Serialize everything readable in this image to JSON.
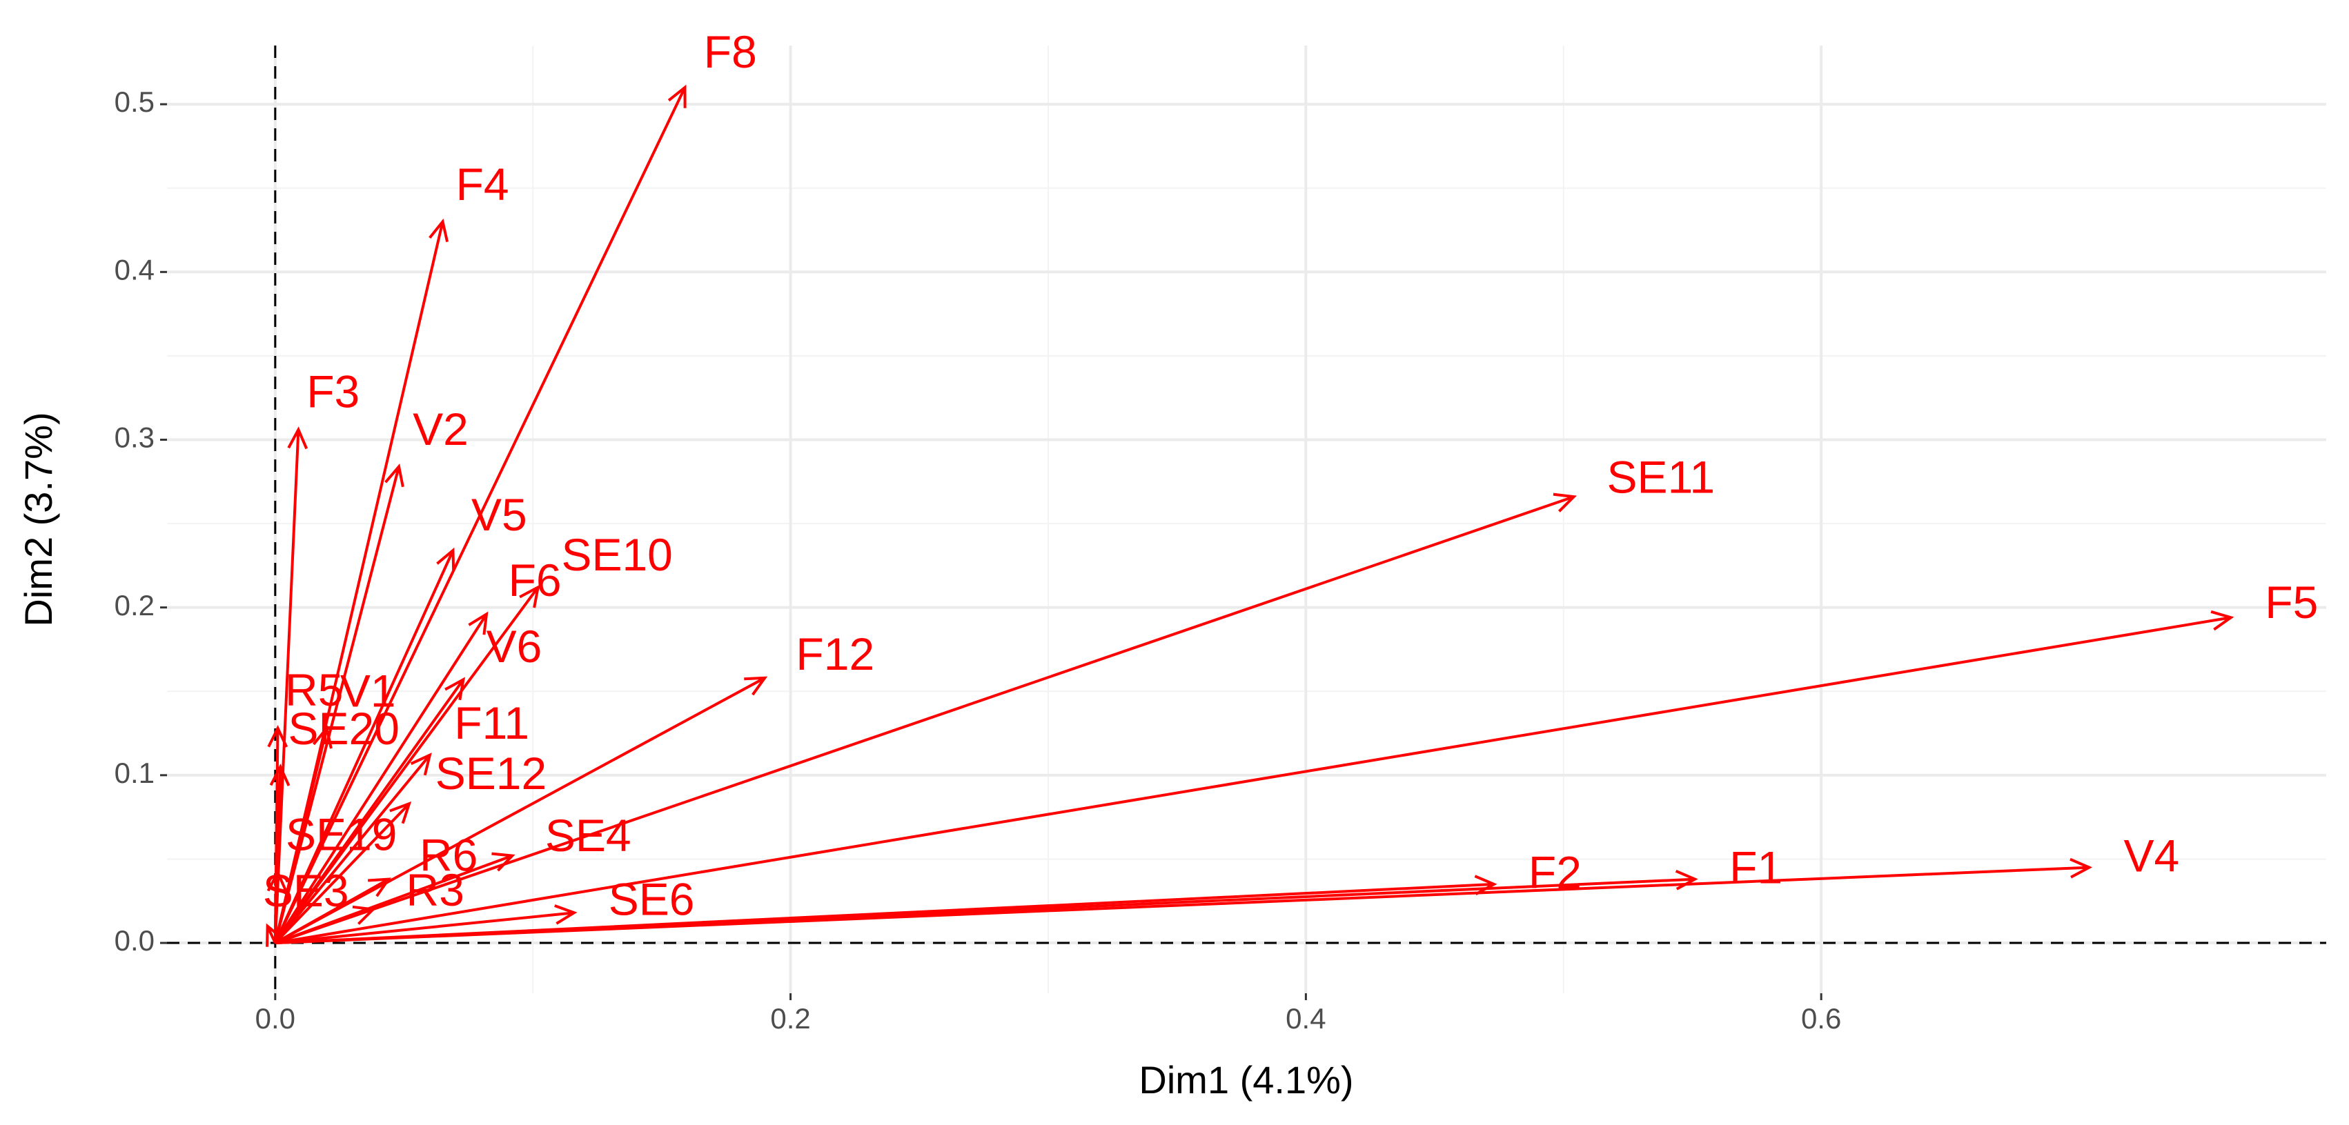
{
  "chart_data": {
    "type": "arrow",
    "x_label": "Dim1 (4.1%)",
    "y_label": "Dim2 (3.7%)",
    "labels": [
      "F8",
      "F4",
      "F3",
      "V2",
      "V5",
      "F6",
      "SE10",
      "V6",
      "F12",
      "SE11",
      "F5",
      "V4",
      "F1",
      "F2",
      "SE4",
      "SE6",
      "R6",
      "R5",
      "V1",
      "F11",
      "SE12",
      "SE20",
      "SE19",
      "SE3",
      "R3"
    ],
    "x": [
      0.159,
      0.065,
      0.009,
      0.048,
      0.069,
      0.082,
      0.102,
      0.073,
      0.19,
      0.504,
      0.759,
      0.704,
      0.551,
      0.473,
      0.092,
      0.116,
      0.044,
      0.001,
      0.02,
      0.06,
      0.052,
      0.002,
      0.001,
      -0.003,
      0.038
    ],
    "y": [
      0.51,
      0.43,
      0.306,
      0.284,
      0.234,
      0.196,
      0.212,
      0.157,
      0.158,
      0.266,
      0.194,
      0.045,
      0.038,
      0.035,
      0.052,
      0.018,
      0.038,
      0.128,
      0.128,
      0.112,
      0.083,
      0.105,
      0.042,
      0.01,
      0.02
    ],
    "color": "#ff0000",
    "xlim": [
      -0.042,
      0.796
    ],
    "ylim": [
      -0.03,
      0.535
    ],
    "xticks": [
      {
        "value": 0,
        "label": "0.0"
      },
      0.2,
      0.4,
      0.6
    ],
    "yticks": [
      {
        "value": 0,
        "label": "0.0"
      },
      0.1,
      0.2,
      0.3,
      0.4,
      0.5
    ],
    "grid": true
  }
}
